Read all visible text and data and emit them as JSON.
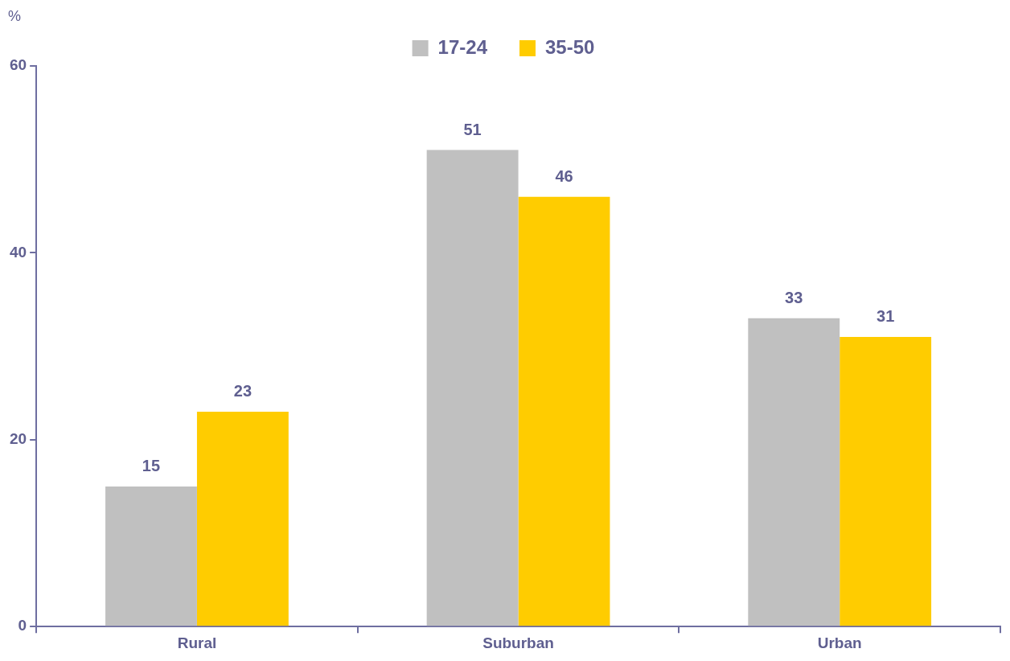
{
  "chart_data": {
    "type": "bar",
    "ylabel": "%",
    "categories": [
      "Rural",
      "Suburban",
      "Urban"
    ],
    "series": [
      {
        "name": "17-24",
        "color": "#c0c0c0",
        "values": [
          15,
          51,
          33
        ]
      },
      {
        "name": "35-50",
        "color": "#ffcc00",
        "values": [
          23,
          46,
          31
        ]
      }
    ],
    "ylim": [
      0,
      60
    ],
    "yticks": [
      0,
      20,
      40,
      60
    ],
    "grid": false,
    "legend": "top",
    "data_labels": true
  }
}
